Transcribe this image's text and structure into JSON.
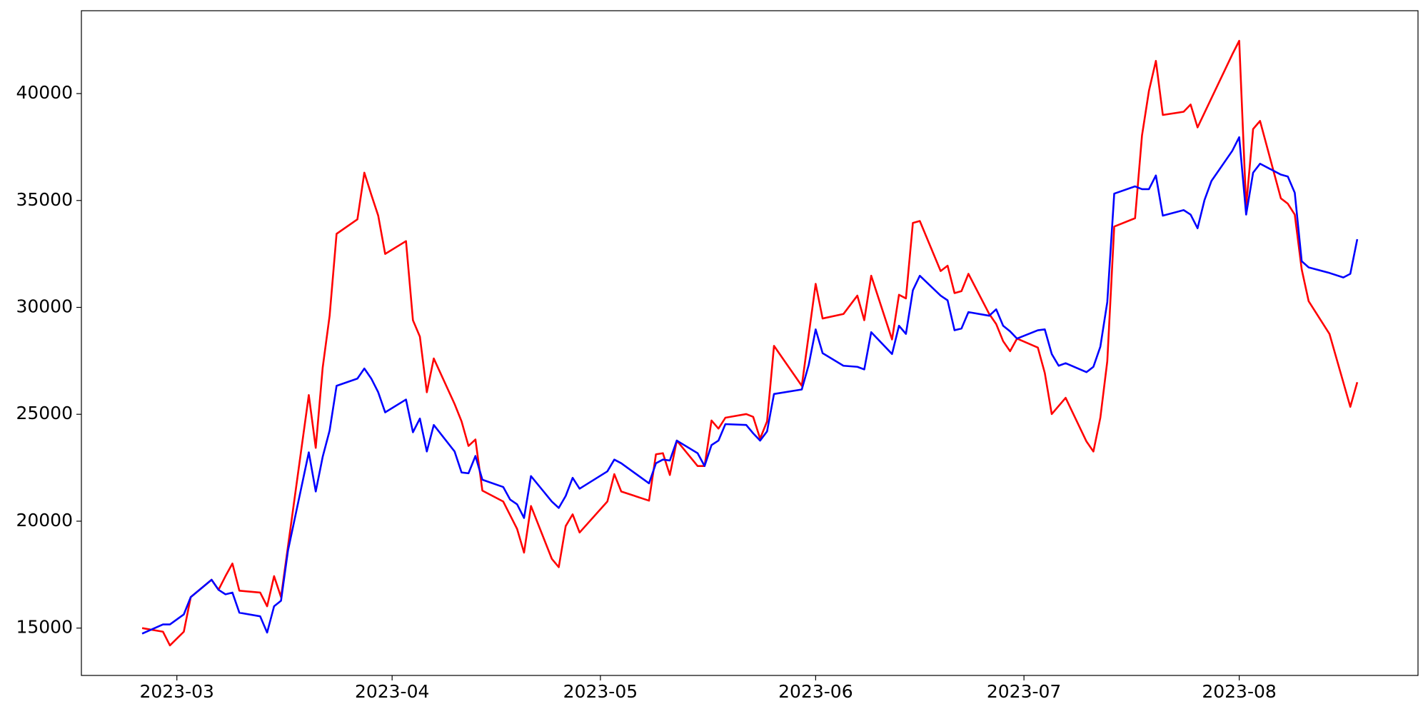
{
  "chart_data": {
    "type": "line",
    "xlim": [
      45.25,
      237.75
    ],
    "xticks": [
      {
        "value": 59,
        "label": "2023-03"
      },
      {
        "value": 90,
        "label": "2023-04"
      },
      {
        "value": 120,
        "label": "2023-05"
      },
      {
        "value": 151,
        "label": "2023-06"
      },
      {
        "value": 181,
        "label": "2023-07"
      },
      {
        "value": 212,
        "label": "2023-08"
      }
    ],
    "ylim": [
      12785,
      43876
    ],
    "yticks": [
      15000,
      20000,
      25000,
      30000,
      35000,
      40000
    ],
    "grid": false,
    "series": [
      {
        "color": "#ff0000",
        "x": [
          54,
          57,
          58,
          60,
          61,
          64,
          65,
          66,
          67,
          68,
          71,
          72,
          73,
          74,
          78,
          79,
          80,
          81,
          82,
          85,
          86,
          87,
          88,
          89,
          92,
          93,
          94,
          95,
          96,
          99,
          100,
          101,
          102,
          103,
          106,
          107,
          108,
          109,
          110,
          113,
          114,
          115,
          116,
          117,
          121,
          122,
          123,
          127,
          128,
          129,
          130,
          131,
          134,
          135,
          136,
          137,
          138,
          141,
          142,
          143,
          144,
          145,
          149,
          151,
          152,
          155,
          157,
          158,
          159,
          162,
          163,
          164,
          165,
          166,
          169,
          170,
          171,
          172,
          173,
          176,
          177,
          178,
          179,
          180,
          183,
          184,
          185,
          187,
          190,
          191,
          192,
          193,
          194,
          197,
          198,
          199,
          200,
          201,
          204,
          205,
          206,
          211,
          212,
          213,
          214,
          215,
          218,
          219,
          220,
          221,
          222,
          225,
          228,
          229
        ],
        "values": [
          15000,
          14830,
          14190,
          14830,
          16450,
          17260,
          16790,
          17430,
          18020,
          16750,
          16660,
          16020,
          17430,
          16450,
          25900,
          23430,
          27180,
          29610,
          33440,
          34120,
          36300,
          35270,
          34290,
          32500,
          33100,
          29400,
          28630,
          26030,
          27610,
          25480,
          24670,
          23520,
          23820,
          21430,
          20920,
          20280,
          19640,
          18530,
          20710,
          18240,
          17850,
          19770,
          20320,
          19470,
          20920,
          22200,
          21390,
          20960,
          23130,
          23180,
          22160,
          23770,
          22580,
          22580,
          24710,
          24330,
          24840,
          25010,
          24880,
          23860,
          24670,
          28200,
          26330,
          31100,
          29480,
          29690,
          30550,
          29400,
          31480,
          28500,
          30590,
          30420,
          33950,
          34040,
          31700,
          31950,
          30670,
          30760,
          31570,
          29690,
          29220,
          28420,
          27950,
          28540,
          28120,
          26930,
          25010,
          25770,
          23730,
          23260,
          24840,
          27480,
          33780,
          34170,
          38040,
          40130,
          41530,
          39000,
          39150,
          39490,
          38420,
          41830,
          42470,
          34720,
          38340,
          38720,
          35100,
          34850,
          34340,
          31780,
          30290,
          28760,
          25350,
          26500
        ]
      },
      {
        "color": "#0000ff",
        "x": [
          54,
          57,
          58,
          60,
          61,
          64,
          65,
          66,
          67,
          68,
          71,
          72,
          73,
          74,
          75,
          78,
          79,
          80,
          81,
          82,
          85,
          86,
          87,
          88,
          89,
          92,
          93,
          94,
          95,
          96,
          99,
          100,
          101,
          102,
          103,
          106,
          107,
          108,
          109,
          110,
          113,
          114,
          115,
          116,
          117,
          121,
          122,
          123,
          127,
          128,
          129,
          130,
          131,
          134,
          135,
          136,
          137,
          138,
          141,
          142,
          143,
          144,
          145,
          149,
          150,
          151,
          152,
          155,
          157,
          158,
          159,
          162,
          163,
          164,
          165,
          166,
          169,
          170,
          171,
          172,
          173,
          176,
          177,
          178,
          179,
          180,
          183,
          184,
          185,
          186,
          187,
          190,
          191,
          192,
          193,
          194,
          197,
          198,
          199,
          200,
          201,
          204,
          205,
          206,
          207,
          208,
          211,
          212,
          213,
          214,
          215,
          218,
          219,
          220,
          221,
          222,
          225,
          227,
          228,
          229
        ],
        "values": [
          14740,
          15170,
          15170,
          15640,
          16450,
          17260,
          16790,
          16580,
          16660,
          15720,
          15550,
          14790,
          16020,
          16280,
          18620,
          23220,
          21390,
          23010,
          24240,
          26330,
          26670,
          27140,
          26670,
          26030,
          25090,
          25690,
          24160,
          24800,
          23260,
          24500,
          23260,
          22280,
          22240,
          23050,
          21940,
          21600,
          21010,
          20790,
          20150,
          22110,
          20920,
          20620,
          21180,
          22030,
          21520,
          22330,
          22880,
          22710,
          21770,
          22710,
          22880,
          22840,
          23770,
          23180,
          22580,
          23560,
          23770,
          24540,
          24500,
          24110,
          23770,
          24200,
          25950,
          26160,
          27310,
          28970,
          27860,
          27270,
          27220,
          27100,
          28840,
          27820,
          29140,
          28760,
          30800,
          31480,
          30550,
          30330,
          28930,
          29010,
          29780,
          29610,
          29910,
          29140,
          28880,
          28540,
          28930,
          28970,
          27820,
          27270,
          27390,
          26970,
          27220,
          28160,
          30250,
          35320,
          35660,
          35530,
          35530,
          36170,
          34290,
          34550,
          34340,
          33700,
          35020,
          35910,
          37320,
          37960,
          34340,
          36300,
          36720,
          36210,
          36120,
          35360,
          32160,
          31870,
          31610,
          31400,
          31570,
          33190
        ]
      }
    ]
  }
}
